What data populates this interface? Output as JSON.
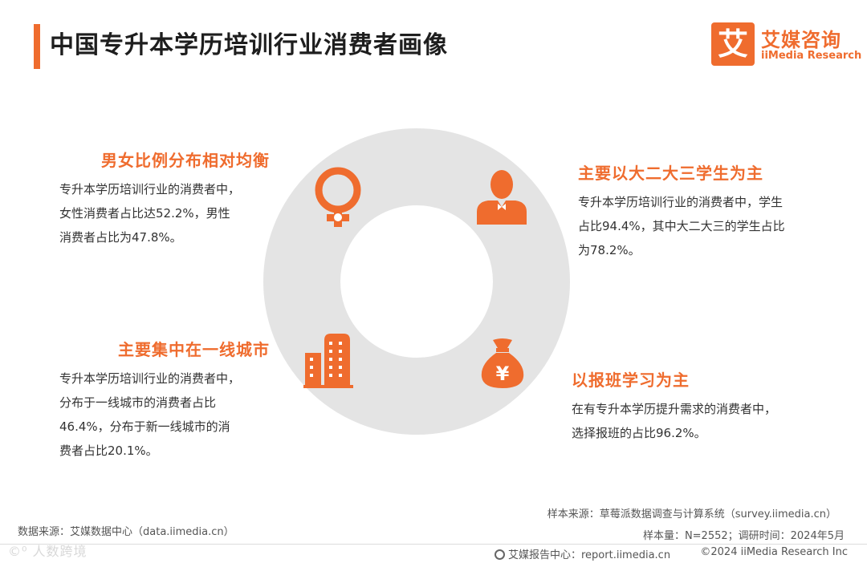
{
  "header": {
    "title": "中国专升本学历培训行业消费者画像",
    "logo_mark": "艾",
    "logo_cn": "艾媒咨询",
    "logo_en": "iiMedia Research"
  },
  "colors": {
    "accent": "#ef6c2e",
    "ring": "#e4e4e4",
    "text": "#333333"
  },
  "blocks": {
    "gender": {
      "title": "男女比例分布相对均衡",
      "lines": [
        "专升本学历培训行业的消费者中，",
        "女性消费者占比达52.2%，男性",
        "消费者占比为47.8%。"
      ],
      "icon": "female-symbol-icon"
    },
    "student": {
      "title": "主要以大二大三学生为主",
      "lines": [
        "专升本学历培训行业的消费者中，学生",
        "占比94.4%，其中大二大三的学生占比",
        "为78.2%。"
      ],
      "icon": "person-icon"
    },
    "city": {
      "title": "主要集中在一线城市",
      "lines": [
        "专升本学历培训行业的消费者中，",
        "分布于一线城市的消费者占比",
        "46.4%，分布于新一线城市的消",
        "费者占比20.1%。"
      ],
      "icon": "buildings-icon"
    },
    "class": {
      "title": "以报班学习为主",
      "lines": [
        "在有专升本学历提升需求的消费者中，",
        "选择报班的占比96.2%。"
      ],
      "icon": "money-bag-icon",
      "money_symbol": "¥"
    }
  },
  "footer": {
    "data_source": "数据来源：艾媒数据中心（data.iimedia.cn）",
    "sample_source": "样本来源：草莓派数据调查与计算系统（survey.iimedia.cn）",
    "sample_info": "样本量：N=2552；调研时间：2024年5月",
    "report_center": "艾媒报告中心：report.iimedia.cn",
    "copyright": "©2024  iiMedia Research  Inc",
    "watermark": "©⁰ 人数跨境"
  }
}
